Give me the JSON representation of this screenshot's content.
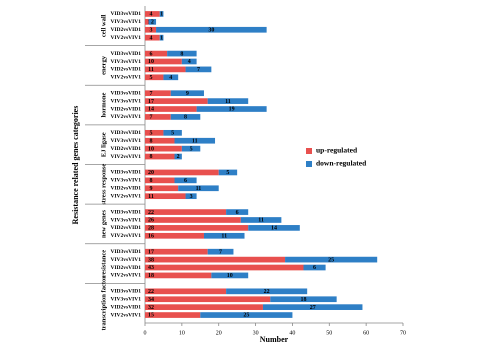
{
  "chart_data": {
    "type": "stacked-hbar",
    "ylabel": "Resistance related genes categories",
    "xlabel": "Number",
    "groups": [
      "cell wall",
      "energy",
      "hormone",
      "EJ ligase",
      "stress response",
      "new genes",
      "resistance",
      "transcription factor"
    ],
    "categories": [
      "VID3vsVID1",
      "VIV3vsVIV1",
      "VID2vsVID1",
      "VIV2vsVIV1",
      "VID3vsVID1",
      "VIV3vsVIV1",
      "VID2vsVID1",
      "VIV2vsVIV1",
      "VID3vsVID1",
      "VIV3vsVIV1",
      "VID2vsVID1",
      "VIV2vsVIV1",
      "VID3vsVID1",
      "VIV3vsVIV1",
      "VID2vsVID1",
      "VIV2vsVIV1",
      "VID3vsVID1",
      "VIV3vsVIV1",
      "VID2vsVID1",
      "VIV2vsVIV1",
      "VID3vsVID1",
      "VIV3vsVIV1",
      "VID2vsVID1",
      "VIV2vsVIV1",
      "VID3vsVID1",
      "VIV3vsVIV1",
      "VID2vsVID1",
      "VIV2vsVIV1",
      "VID3vsVID1",
      "VIV3vsVIV1",
      "VID2vsVID1",
      "VIV2vsVIV1"
    ],
    "series": [
      {
        "name": "up-regulated",
        "color": "#e8504e",
        "values": [
          4,
          1,
          3,
          4,
          6,
          10,
          11,
          5,
          7,
          17,
          14,
          7,
          5,
          8,
          10,
          8,
          20,
          8,
          9,
          11,
          22,
          26,
          28,
          16,
          17,
          38,
          43,
          18,
          22,
          34,
          32,
          15
        ]
      },
      {
        "name": "down-regulated",
        "color": "#2e7fc6",
        "values": [
          1,
          2,
          30,
          1,
          8,
          4,
          7,
          4,
          9,
          11,
          19,
          8,
          5,
          11,
          5,
          2,
          5,
          6,
          11,
          3,
          6,
          11,
          14,
          11,
          7,
          25,
          6,
          10,
          22,
          18,
          27,
          25
        ]
      }
    ],
    "xlim": [
      0,
      70
    ],
    "xticks": [
      0,
      10,
      20,
      30,
      40,
      50,
      60,
      70
    ]
  }
}
